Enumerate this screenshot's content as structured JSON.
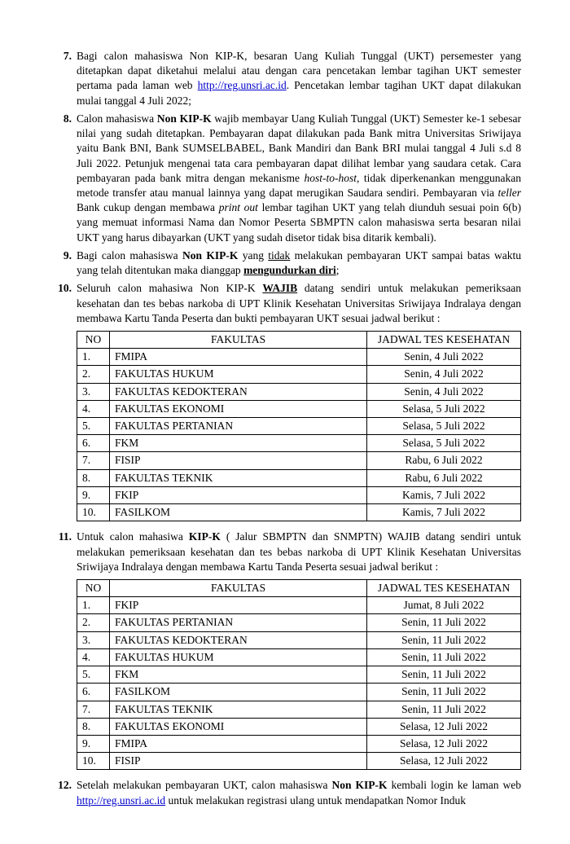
{
  "items": {
    "i7": {
      "num": "7.",
      "t1": "Bagi calon mahasiswa Non KIP-K, besaran Uang Kuliah Tunggal (UKT) persemester yang ditetapkan dapat diketahui melalui atau dengan cara pencetakan lembar tagihan UKT semester pertama pada laman web ",
      "link": "http://reg.unsri.ac.id",
      "t2": ". Pencetakan lembar tagihan UKT dapat dilakukan mulai tanggal 4 Juli 2022;"
    },
    "i8": {
      "num": "8.",
      "t1": "Calon mahasiswa ",
      "b1": "Non KIP-K",
      "t2": " wajib membayar Uang Kuliah Tunggal (UKT) Semester ke-1 sebesar nilai yang sudah ditetapkan. Pembayaran dapat dilakukan pada Bank mitra Universitas Sriwijaya yaitu Bank BNI, Bank SUMSELBABEL, Bank Mandiri dan Bank BRI mulai tanggal 4 Juli s.d 8 Juli 2022. Petunjuk mengenai tata cara pembayaran dapat dilihat lembar yang saudara cetak. Cara pembayaran pada bank mitra dengan mekanisme ",
      "i1": "host-to-host",
      "t3": ", tidak diperkenankan menggunakan metode transfer atau manual lainnya yang dapat merugikan Saudara sendiri. Pembayaran via ",
      "i2": "teller",
      "t4": " Bank cukup dengan membawa ",
      "i3": "print out",
      "t5": " lembar tagihan UKT yang telah diunduh sesuai poin 6(b) yang memuat informasi Nama dan Nomor Peserta SBMPTN calon mahasiswa serta besaran nilai UKT yang harus dibayarkan (UKT yang sudah disetor tidak bisa ditarik kembali)."
    },
    "i9": {
      "num": "9.",
      "t1": "Bagi calon mahasiswa ",
      "b1": "Non KIP-K",
      "t2": " yang ",
      "u1": "tidak",
      "t3": " melakukan pembayaran UKT sampai batas waktu yang telah ditentukan maka dianggap ",
      "u2": "mengundurkan diri",
      "t4": ";"
    },
    "i10": {
      "num": "10.",
      "t1": "Seluruh calon mahasiwa Non KIP-K ",
      "b1": "WAJIB",
      "t2": " datang sendiri untuk melakukan pemeriksaan kesehatan dan tes bebas narkoba di UPT Klinik Kesehatan Universitas Sriwijaya Indralaya dengan membawa Kartu Tanda Peserta dan bukti pembayaran UKT sesuai jadwal berikut :"
    },
    "i11": {
      "num": "11.",
      "t1": "Untuk calon mahasiwa ",
      "b1": "KIP-K",
      "t2": " ( Jalur SBMPTN dan SNMPTN) WAJIB datang sendiri untuk melakukan pemeriksaan kesehatan dan tes bebas narkoba di UPT Klinik Kesehatan Universitas Sriwijaya Indralaya dengan membawa Kartu Tanda Peserta  sesuai jadwal berikut :"
    },
    "i12": {
      "num": "12.",
      "t1": "Setelah melakukan pembayaran UKT, calon mahasiswa ",
      "b1": "Non KIP-K",
      "t2": " kembali login ke laman web ",
      "link": "http://reg.unsri.ac.id",
      "t3": " untuk melakukan registrasi ulang untuk mendapatkan Nomor Induk"
    }
  },
  "tableHeaders": {
    "no": "NO",
    "fak": "FAKULTAS",
    "jad": "JADWAL TES KESEHATAN"
  },
  "table1": [
    {
      "no": "1.",
      "fak": "FMIPA",
      "jad": "Senin, 4 Juli 2022"
    },
    {
      "no": "2.",
      "fak": "FAKULTAS HUKUM",
      "jad": "Senin, 4 Juli 2022"
    },
    {
      "no": "3.",
      "fak": "FAKULTAS KEDOKTERAN",
      "jad": "Senin, 4 Juli 2022"
    },
    {
      "no": "4.",
      "fak": "FAKULTAS EKONOMI",
      "jad": "Selasa, 5 Juli 2022"
    },
    {
      "no": "5.",
      "fak": "FAKULTAS PERTANIAN",
      "jad": "Selasa, 5 Juli 2022"
    },
    {
      "no": "6.",
      "fak": "FKM",
      "jad": "Selasa, 5 Juli 2022"
    },
    {
      "no": "7.",
      "fak": "FISIP",
      "jad": "Rabu, 6 Juli 2022"
    },
    {
      "no": "8.",
      "fak": "FAKULTAS TEKNIK",
      "jad": "Rabu, 6 Juli 2022"
    },
    {
      "no": "9.",
      "fak": "FKIP",
      "jad": "Kamis, 7 Juli 2022"
    },
    {
      "no": "10.",
      "fak": "FASILKOM",
      "jad": "Kamis, 7 Juli 2022"
    }
  ],
  "table2": [
    {
      "no": "1.",
      "fak": "FKIP",
      "jad": "Jumat, 8 Juli 2022"
    },
    {
      "no": "2.",
      "fak": "FAKULTAS PERTANIAN",
      "jad": "Senin, 11 Juli 2022"
    },
    {
      "no": "3.",
      "fak": "FAKULTAS KEDOKTERAN",
      "jad": "Senin, 11 Juli 2022"
    },
    {
      "no": "4.",
      "fak": "FAKULTAS HUKUM",
      "jad": "Senin, 11 Juli 2022"
    },
    {
      "no": "5.",
      "fak": "FKM",
      "jad": "Senin, 11 Juli 2022"
    },
    {
      "no": "6.",
      "fak": "FASILKOM",
      "jad": "Senin, 11 Juli 2022"
    },
    {
      "no": "7.",
      "fak": "FAKULTAS TEKNIK",
      "jad": "Senin, 11 Juli 2022"
    },
    {
      "no": "8.",
      "fak": "FAKULTAS EKONOMI",
      "jad": "Selasa, 12 Juli 2022"
    },
    {
      "no": "9.",
      "fak": "FMIPA",
      "jad": "Selasa, 12 Juli 2022"
    },
    {
      "no": "10.",
      "fak": "FISIP",
      "jad": "Selasa, 12 Juli 2022"
    }
  ]
}
